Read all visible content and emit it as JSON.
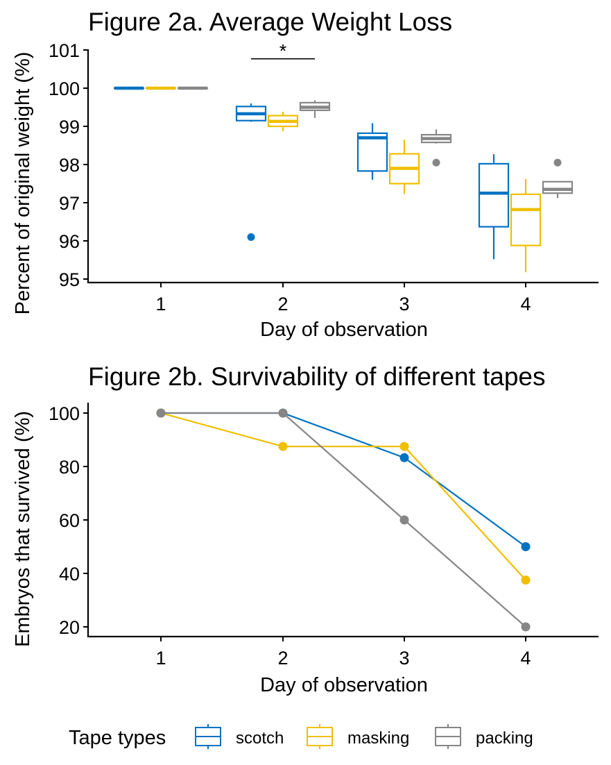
{
  "colors": {
    "scotch": "#0072C2",
    "masking": "#F0BF00",
    "packing": "#868686"
  },
  "legend": {
    "title": "Tape types",
    "position": "bottom",
    "items": [
      {
        "key": "scotch",
        "label": "scotch"
      },
      {
        "key": "masking",
        "label": "masking"
      },
      {
        "key": "packing",
        "label": "packing"
      }
    ]
  },
  "chart_data": [
    {
      "type": "box",
      "title": "Figure 2a. Average Weight Loss",
      "xlabel": "Day of observation",
      "ylabel": "Percent of original weight (%)",
      "categories": [
        "1",
        "2",
        "3",
        "4"
      ],
      "ylim": [
        94.9,
        101.1
      ],
      "yticks": [
        95,
        96,
        97,
        98,
        99,
        100,
        101
      ],
      "grid": false,
      "significance": {
        "day": "2",
        "from": "scotch",
        "to": "packing",
        "y": 100.77,
        "label": "*"
      },
      "series": [
        {
          "name": "scotch",
          "boxes": [
            {
              "day": "1",
              "min": 100,
              "q1": 100,
              "median": 100,
              "q3": 100,
              "max": 100,
              "outliers": []
            },
            {
              "day": "2",
              "min": 99.12,
              "q1": 99.15,
              "median": 99.33,
              "q3": 99.52,
              "max": 99.6,
              "outliers": [
                96.1
              ]
            },
            {
              "day": "3",
              "min": 97.6,
              "q1": 97.83,
              "median": 98.7,
              "q3": 98.82,
              "max": 99.08,
              "outliers": []
            },
            {
              "day": "4",
              "min": 95.52,
              "q1": 96.37,
              "median": 97.25,
              "q3": 98.02,
              "max": 98.27,
              "outliers": []
            }
          ]
        },
        {
          "name": "masking",
          "boxes": [
            {
              "day": "1",
              "min": 100,
              "q1": 100,
              "median": 100,
              "q3": 100,
              "max": 100,
              "outliers": []
            },
            {
              "day": "2",
              "min": 98.87,
              "q1": 99.0,
              "median": 99.13,
              "q3": 99.28,
              "max": 99.38,
              "outliers": []
            },
            {
              "day": "3",
              "min": 97.23,
              "q1": 97.5,
              "median": 97.9,
              "q3": 98.28,
              "max": 98.65,
              "outliers": []
            },
            {
              "day": "4",
              "min": 95.18,
              "q1": 95.88,
              "median": 96.82,
              "q3": 97.22,
              "max": 97.62,
              "outliers": []
            }
          ]
        },
        {
          "name": "packing",
          "boxes": [
            {
              "day": "1",
              "min": 100,
              "q1": 100,
              "median": 100,
              "q3": 100,
              "max": 100,
              "outliers": []
            },
            {
              "day": "2",
              "min": 99.22,
              "q1": 99.42,
              "median": 99.5,
              "q3": 99.62,
              "max": 99.68,
              "outliers": []
            },
            {
              "day": "3",
              "min": 98.55,
              "q1": 98.58,
              "median": 98.68,
              "q3": 98.78,
              "max": 98.92,
              "outliers": [
                98.05
              ]
            },
            {
              "day": "4",
              "min": 97.12,
              "q1": 97.25,
              "median": 97.35,
              "q3": 97.55,
              "max": 97.55,
              "outliers": [
                98.05
              ]
            }
          ]
        }
      ]
    },
    {
      "type": "line",
      "title": "Figure 2b. Survivability of different tapes",
      "xlabel": "Day of observation",
      "ylabel": "Embryos that survived (%)",
      "categories": [
        "1",
        "2",
        "3",
        "4"
      ],
      "ylim": [
        16,
        104
      ],
      "yticks": [
        20,
        40,
        60,
        80,
        100
      ],
      "grid": false,
      "series": [
        {
          "name": "scotch",
          "values": [
            100,
            100,
            83.3,
            50
          ]
        },
        {
          "name": "masking",
          "values": [
            100,
            87.5,
            87.5,
            37.5
          ]
        },
        {
          "name": "packing",
          "values": [
            100,
            100,
            60,
            20
          ]
        }
      ]
    }
  ]
}
